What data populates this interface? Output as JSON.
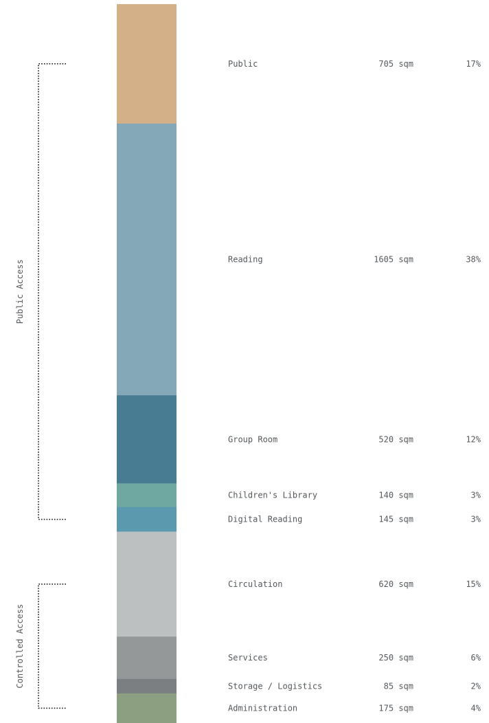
{
  "chart_data": {
    "type": "stacked-bar",
    "unit": "sqm",
    "series": [
      {
        "label": "Public",
        "area": "705 sqm",
        "value": 705,
        "percent": "17%",
        "color": "#d3b088"
      },
      {
        "label": "Reading",
        "area": "1605 sqm",
        "value": 1605,
        "percent": "38%",
        "color": "#84a8b7"
      },
      {
        "label": "Group Room",
        "area": "520 sqm",
        "value": 520,
        "percent": "12%",
        "color": "#487c93"
      },
      {
        "label": "Children's Library",
        "area": "140 sqm",
        "value": 140,
        "percent": "3%",
        "color": "#6fa8a1"
      },
      {
        "label": "Digital Reading",
        "area": "145 sqm",
        "value": 145,
        "percent": "3%",
        "color": "#5b9aae"
      },
      {
        "label": "Circulation",
        "area": "620 sqm",
        "value": 620,
        "percent": "15%",
        "color": "#bcc0c1"
      },
      {
        "label": "Services",
        "area": "250 sqm",
        "value": 250,
        "percent": "6%",
        "color": "#959899"
      },
      {
        "label": "Storage / Logistics",
        "area": "85 sqm",
        "value": 85,
        "percent": "2%",
        "color": "#7b7f82"
      },
      {
        "label": "Administration",
        "area": "175 sqm",
        "value": 175,
        "percent": "4%",
        "color": "#8c9f80"
      }
    ],
    "groups": [
      {
        "label": "Public Access",
        "from": 0,
        "to": 4
      },
      {
        "label": "Controlled Access",
        "from": 5,
        "to": 8
      }
    ]
  }
}
